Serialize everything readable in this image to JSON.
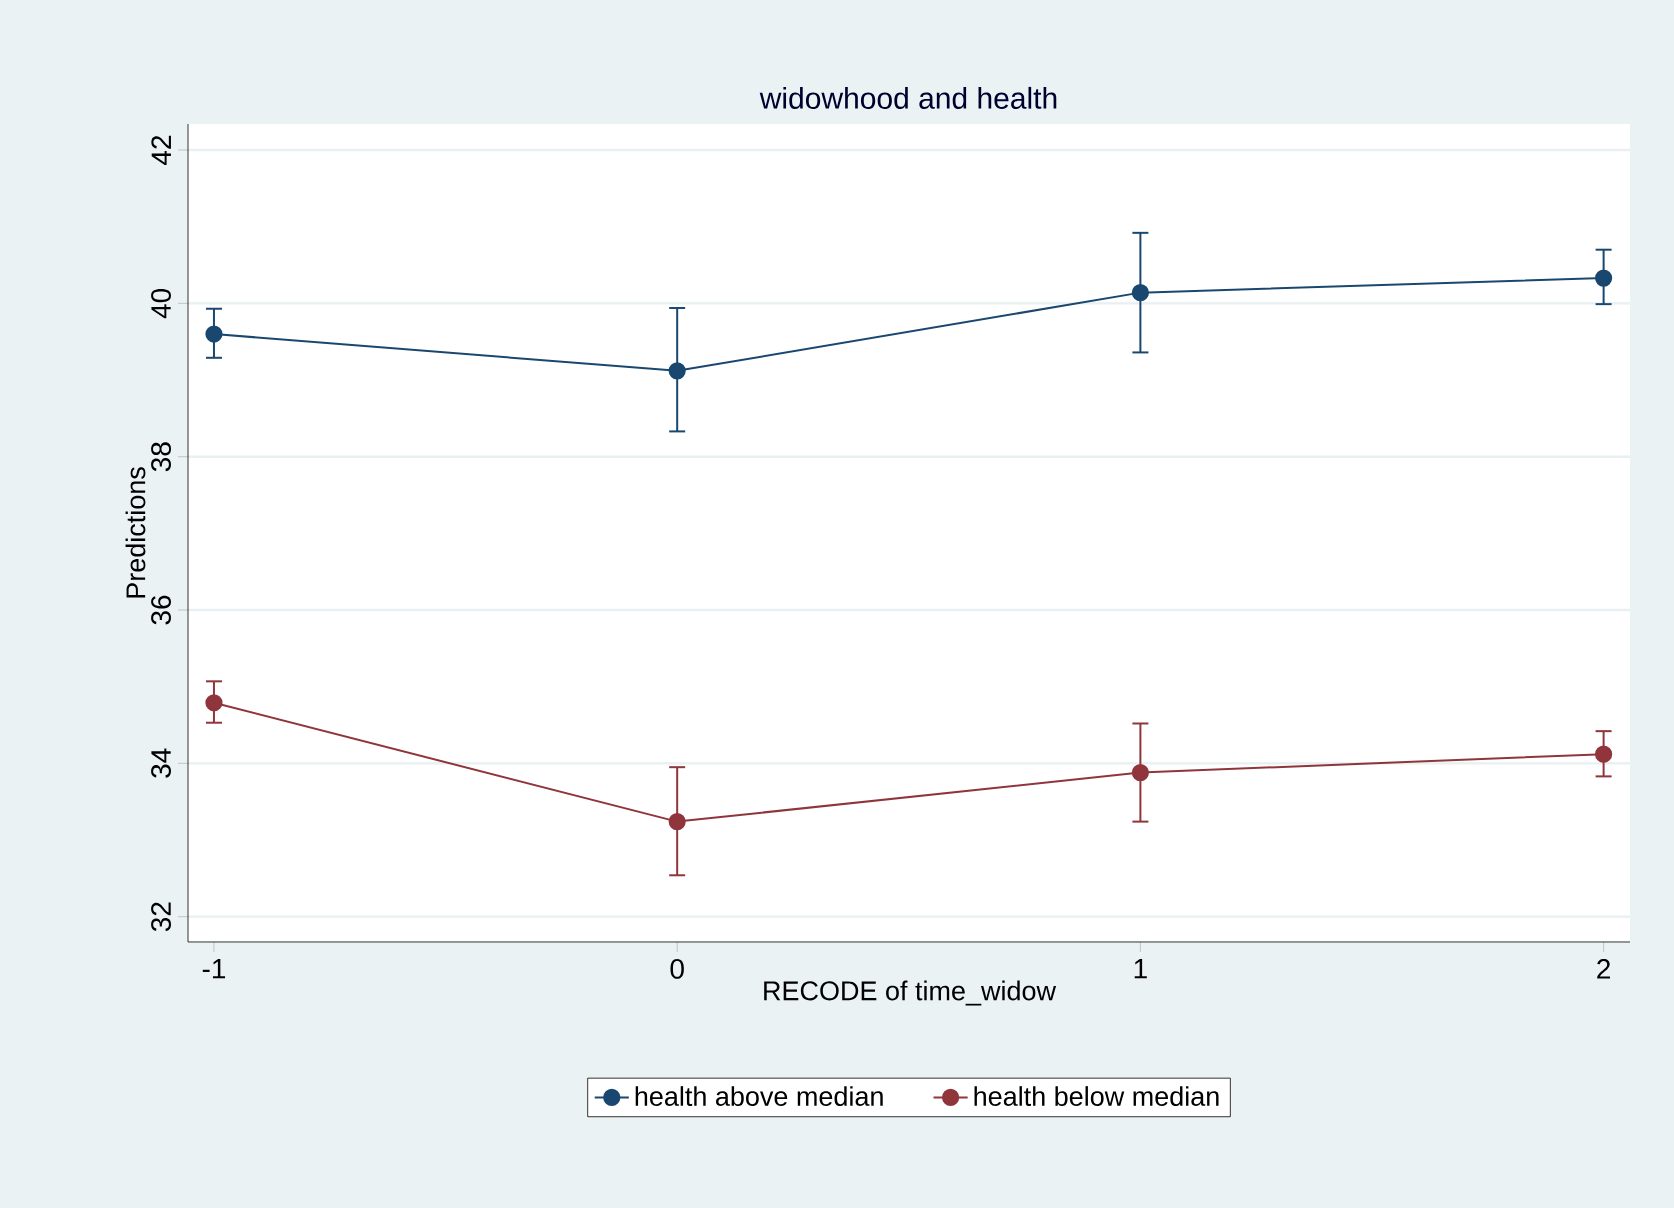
{
  "chart_data": {
    "type": "line",
    "title": "widowhood and health",
    "xlabel": "RECODE of time_widow",
    "ylabel": "Predictions",
    "x": [
      -1,
      0,
      1,
      2
    ],
    "xlim": [
      -1.056,
      2.057
    ],
    "xticks": [
      -1,
      0,
      1,
      2
    ],
    "ylim": [
      31.67,
      42.34
    ],
    "yticks": [
      32,
      34,
      36,
      38,
      40,
      42
    ],
    "grid": "y",
    "legend": "bottom",
    "marker": "circle",
    "line_style": "solid",
    "series": [
      {
        "name": "health above median",
        "color": "#1a476f",
        "values": [
          39.6,
          39.12,
          40.14,
          40.33
        ],
        "errors": [
          [
            39.29,
            39.93
          ],
          [
            38.33,
            39.94
          ],
          [
            39.36,
            40.92
          ],
          [
            39.99,
            40.7
          ]
        ]
      },
      {
        "name": "health below median",
        "color": "#90353b",
        "values": [
          34.79,
          33.24,
          33.88,
          34.12
        ],
        "errors": [
          [
            34.53,
            35.07
          ],
          [
            32.54,
            33.95
          ],
          [
            33.24,
            34.52
          ],
          [
            33.83,
            34.42
          ]
        ]
      }
    ]
  }
}
